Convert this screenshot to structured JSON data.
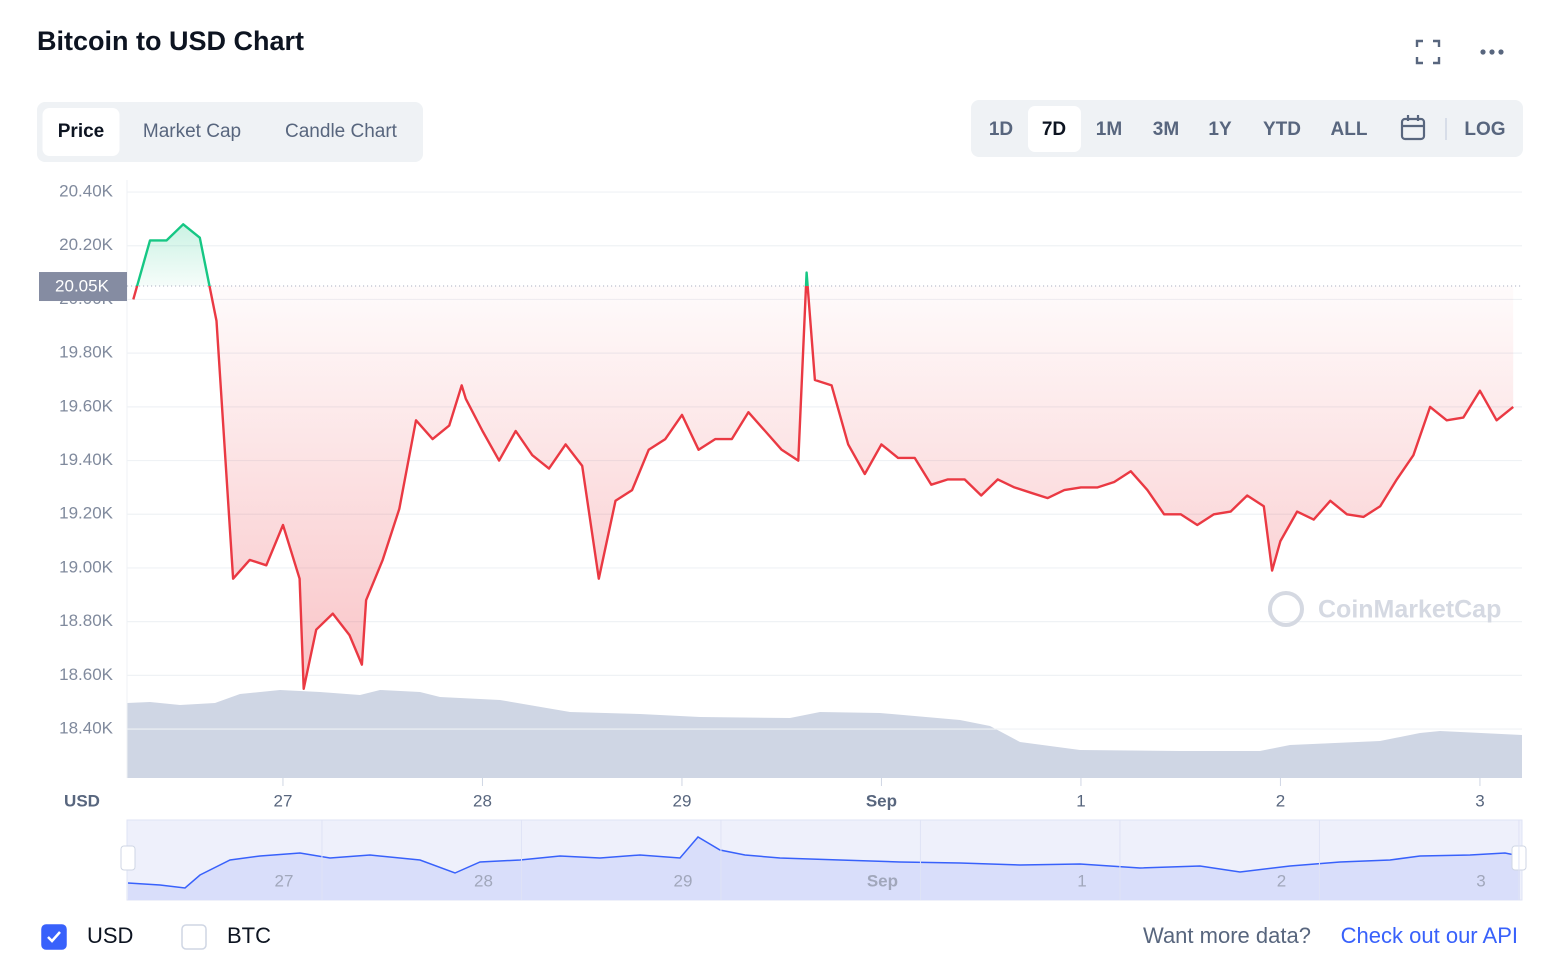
{
  "header": {
    "title": "Bitcoin to USD Chart"
  },
  "tabs": [
    "Price",
    "Market Cap",
    "Candle Chart"
  ],
  "active_tab": 0,
  "ranges": [
    "1D",
    "7D",
    "1M",
    "3M",
    "1Y",
    "YTD",
    "ALL"
  ],
  "active_range": 1,
  "log_button": "LOG",
  "chart_data": {
    "type": "line",
    "y_label": "USD",
    "watermark": "CoinMarketCap",
    "up_color": "#16c784",
    "down_color": "#ea3943",
    "grid": true,
    "reference_line": {
      "value": 20050,
      "label": "20.05K"
    },
    "ylim": [
      18220,
      20440
    ],
    "yticks": [
      {
        "value": 20400,
        "label": "20.40K"
      },
      {
        "value": 20200,
        "label": "20.20K"
      },
      {
        "value": 20000,
        "label": "20.00K"
      },
      {
        "value": 19800,
        "label": "19.80K"
      },
      {
        "value": 19600,
        "label": "19.60K"
      },
      {
        "value": 19400,
        "label": "19.40K"
      },
      {
        "value": 19200,
        "label": "19.20K"
      },
      {
        "value": 19000,
        "label": "19.00K"
      },
      {
        "value": 18800,
        "label": "18.80K"
      },
      {
        "value": 18600,
        "label": "18.60K"
      },
      {
        "value": 18400,
        "label": "18.40K"
      }
    ],
    "xlim": [
      -18.75,
      149
    ],
    "xticks": [
      {
        "value": 0,
        "label": "27"
      },
      {
        "value": 24,
        "label": "28"
      },
      {
        "value": 48,
        "label": "29"
      },
      {
        "value": 72,
        "label": "Sep"
      },
      {
        "value": 96,
        "label": "1"
      },
      {
        "value": 120,
        "label": "2"
      },
      {
        "value": 144,
        "label": "3"
      }
    ],
    "x": [
      -18,
      -16,
      -14,
      -12,
      -10,
      -8,
      -6,
      -4,
      -2,
      0,
      2,
      2.5,
      4,
      6,
      8,
      9.5,
      10,
      12,
      14,
      16,
      18,
      20,
      21.5,
      22,
      24,
      26,
      28,
      30,
      32,
      34,
      36,
      38,
      40,
      42,
      44,
      46,
      48,
      50,
      52,
      54,
      56,
      58,
      60,
      62,
      63,
      64,
      66,
      68,
      70,
      72,
      74,
      76,
      78,
      80,
      82,
      84,
      86,
      88,
      90,
      92,
      94,
      96,
      98,
      100,
      102,
      104,
      106,
      108,
      110,
      112,
      114,
      116,
      118,
      119,
      120,
      122,
      124,
      126,
      128,
      130,
      132,
      134,
      136,
      138,
      140,
      142,
      144,
      146,
      148
    ],
    "values": [
      20000,
      20220,
      20220,
      20280,
      20230,
      19920,
      18960,
      19030,
      19010,
      19160,
      18960,
      18550,
      18770,
      18830,
      18750,
      18640,
      18880,
      19030,
      19220,
      19550,
      19480,
      19530,
      19680,
      19630,
      19510,
      19400,
      19510,
      19420,
      19370,
      19460,
      19380,
      18960,
      19250,
      19290,
      19440,
      19480,
      19570,
      19440,
      19480,
      19480,
      19580,
      19510,
      19440,
      19400,
      20100,
      19700,
      19680,
      19460,
      19350,
      19460,
      19410,
      19410,
      19310,
      19330,
      19330,
      19270,
      19330,
      19300,
      19280,
      19260,
      19290,
      19300,
      19300,
      19320,
      19360,
      19290,
      19200,
      19200,
      19160,
      19200,
      19210,
      19270,
      19230,
      18990,
      19100,
      19210,
      19180,
      19250,
      19200,
      19190,
      19230,
      19330,
      19420,
      19600,
      19550,
      19560,
      19660,
      19550,
      19600
    ]
  },
  "currencies": [
    {
      "label": "USD",
      "checked": true
    },
    {
      "label": "BTC",
      "checked": false
    }
  ],
  "footer": {
    "prompt": "Want more data?",
    "link": "Check out our API"
  }
}
